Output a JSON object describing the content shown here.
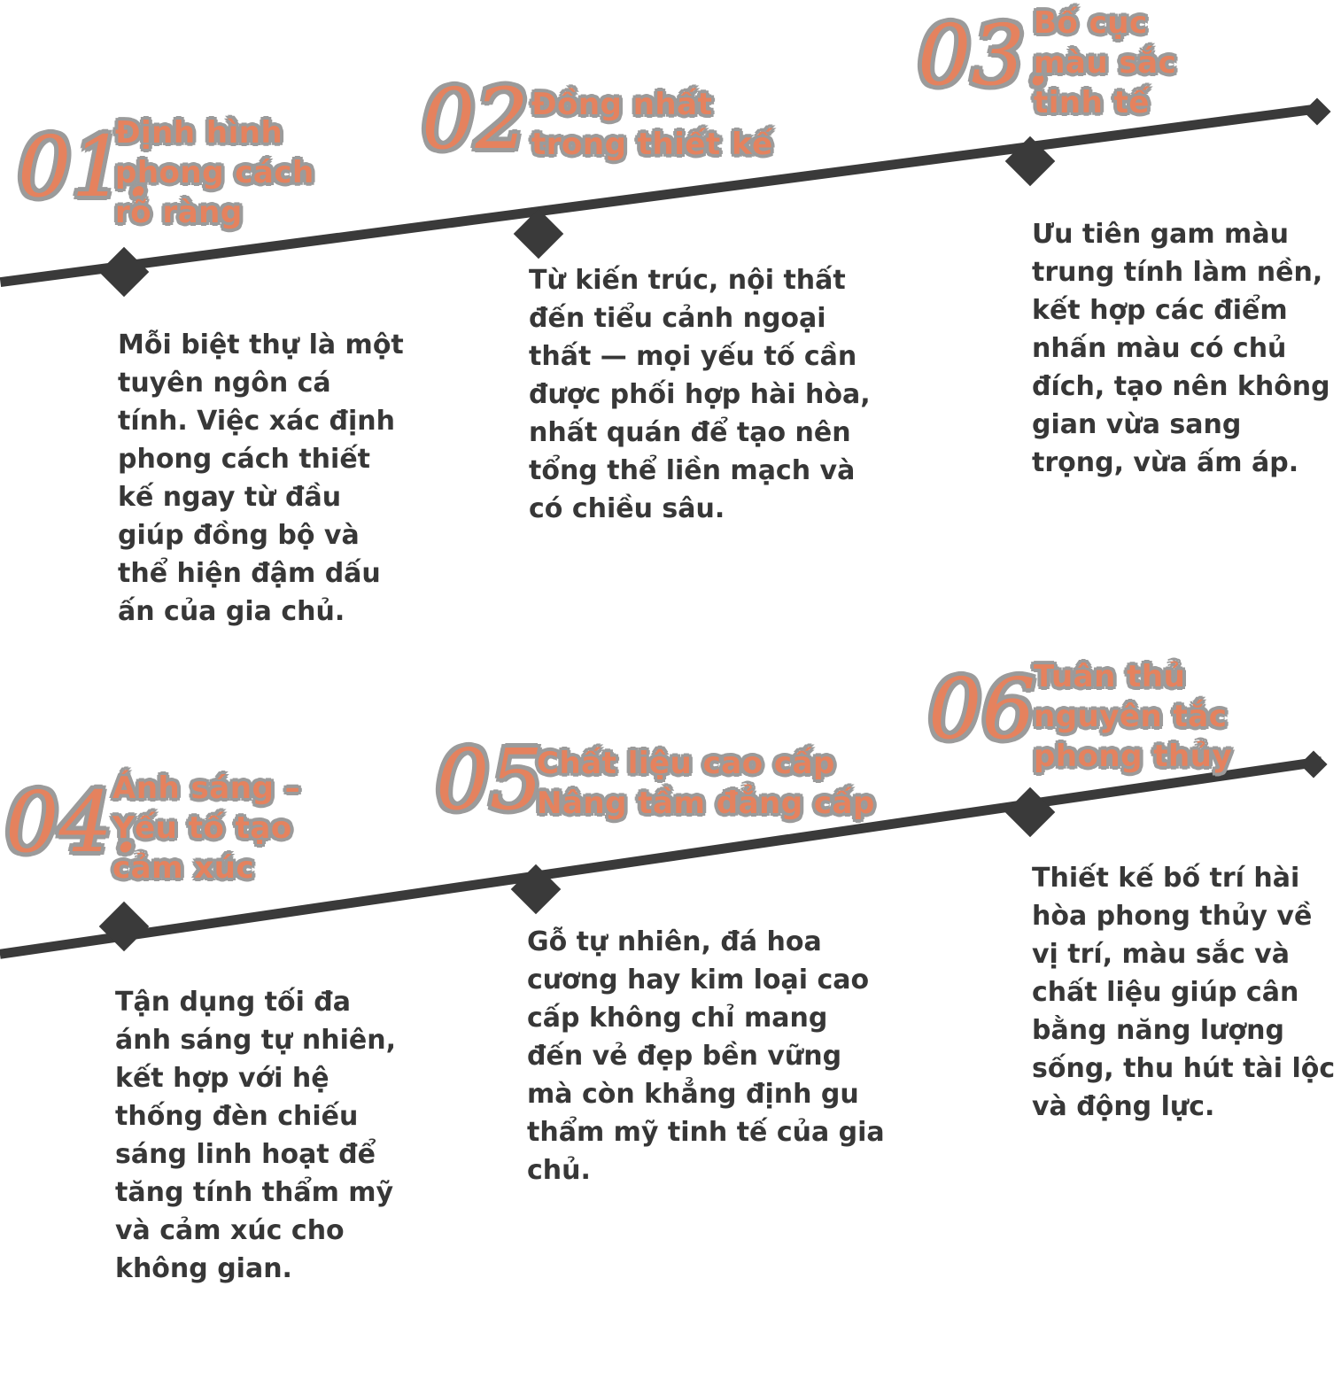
{
  "colors": {
    "accent": "#e5825e",
    "halo": "#9b9b9b",
    "text": "#373737",
    "timeline": "#3a3a3a",
    "background": "#ffffff"
  },
  "items": [
    {
      "number": "01.",
      "title_lines": [
        "Định hình",
        "phong cách",
        "rõ ràng"
      ],
      "body": "Mỗi biệt thự là một tuyên ngôn cá tính. Việc xác định phong cách thiết kế ngay từ đầu giúp đồng bộ và thể hiện đậm dấu ấn của gia chủ."
    },
    {
      "number": "02.",
      "title_lines": [
        "Đồng nhất",
        "trong thiết kế"
      ],
      "body": "Từ kiến trúc, nội thất đến tiểu cảnh ngoại thất — mọi yếu tố cần được phối hợp hài hòa, nhất quán để tạo nên tổng thể liền mạch và có chiều sâu."
    },
    {
      "number": "03.",
      "title_lines": [
        "Bố cục",
        "màu sắc",
        "tinh tế"
      ],
      "body": "Ưu tiên gam màu trung tính làm nền, kết hợp các điểm nhấn màu có chủ đích, tạo nên không gian vừa sang trọng, vừa ấm áp."
    },
    {
      "number": "04.",
      "title_lines": [
        "Ánh sáng –",
        "Yếu tố tạo",
        "cảm xúc"
      ],
      "body": "Tận dụng tối đa ánh sáng tự nhiên, kết hợp với hệ thống đèn chiếu sáng linh hoạt để tăng tính thẩm mỹ và cảm xúc cho không gian."
    },
    {
      "number": "05",
      "title_lines": [
        "Chất liệu cao cấp",
        "Nâng tầm đẳng cấp"
      ],
      "body": "Gỗ tự nhiên, đá hoa cương hay kim loại cao cấp không chỉ mang đến vẻ đẹp bền vững mà còn khẳng định gu thẩm mỹ tinh tế của gia chủ."
    },
    {
      "number": "06",
      "title_lines": [
        "Tuân thủ",
        "nguyên tắc",
        "phong thủy"
      ],
      "body": "Thiết kế bố trí hài hòa phong thủy về vị trí, màu sắc và chất liệu giúp cân bằng năng lượng sống, thu hút tài lộc và động lực."
    }
  ]
}
